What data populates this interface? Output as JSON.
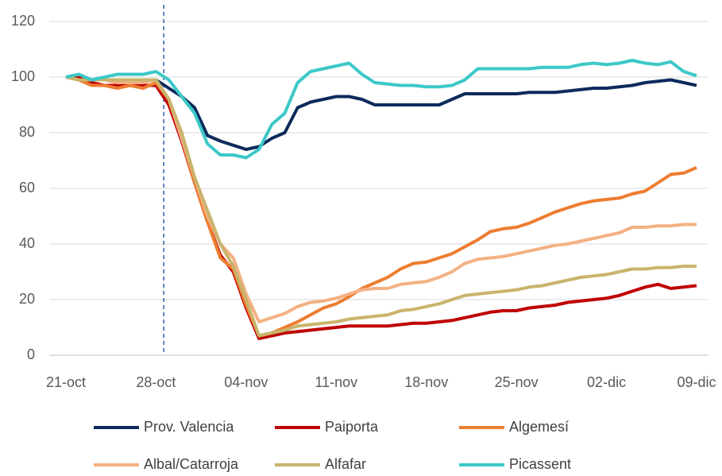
{
  "chart_data": {
    "type": "line",
    "categories": [
      "21-oct",
      null,
      null,
      null,
      null,
      null,
      null,
      "28-oct",
      null,
      null,
      null,
      null,
      null,
      null,
      "04-nov",
      null,
      null,
      null,
      null,
      null,
      null,
      "11-nov",
      null,
      null,
      null,
      null,
      null,
      null,
      "18-nov",
      null,
      null,
      null,
      null,
      null,
      null,
      "25-nov",
      null,
      null,
      null,
      null,
      null,
      null,
      "02-dic",
      null,
      null,
      null,
      null,
      null,
      null,
      "09-dic"
    ],
    "series": [
      {
        "name": "Prov. Valencia",
        "color": "#0d2a5c",
        "values": [
          100,
          100,
          99,
          99,
          99,
          99,
          99,
          99,
          96,
          93,
          89,
          79,
          77,
          75.5,
          74,
          75,
          78,
          80,
          89,
          91,
          92,
          93,
          93,
          92,
          90,
          90,
          90,
          90,
          90,
          90,
          92,
          94,
          94,
          94,
          94,
          94,
          94.5,
          94.5,
          94.5,
          95,
          95.5,
          96,
          96,
          96.5,
          97,
          98,
          98.5,
          99,
          98,
          97
        ]
      },
      {
        "name": "Paiporta",
        "color": "#c00000",
        "values": [
          100,
          100,
          98,
          97,
          97,
          97,
          97,
          97,
          90,
          77,
          62,
          48,
          36,
          30,
          17,
          6,
          7,
          8,
          8.5,
          9,
          9.5,
          10,
          10.5,
          10.5,
          10.5,
          10.5,
          11,
          11.5,
          11.5,
          12,
          12.5,
          13.5,
          14.5,
          15.5,
          16,
          16,
          17,
          17.5,
          18,
          19,
          19.5,
          20,
          20.5,
          21.5,
          23,
          24.5,
          25.5,
          24,
          24.5,
          25
        ]
      },
      {
        "name": "Algemesí",
        "color": "#ed7d31",
        "values": [
          100,
          99,
          97,
          97,
          96,
          97,
          96,
          98,
          92,
          78,
          62,
          48,
          35,
          31,
          18,
          7,
          8,
          10,
          12,
          14.5,
          17,
          18.5,
          21,
          24,
          26,
          28,
          31,
          33,
          33.5,
          35,
          36.5,
          39,
          41.5,
          44.5,
          45.5,
          46,
          47.5,
          49.5,
          51.5,
          53,
          54.5,
          55.5,
          56,
          56.5,
          58,
          59,
          62,
          65,
          65.5,
          67.5
        ]
      },
      {
        "name": "Albal/Catarroja",
        "color": "#f4b183",
        "values": [
          100,
          99,
          99,
          99,
          98,
          98,
          98,
          99,
          92,
          78,
          64,
          50,
          40,
          35,
          22,
          12,
          13.5,
          15,
          17.5,
          19,
          19.5,
          20.5,
          22,
          23.5,
          24,
          24,
          25.5,
          26,
          26.5,
          28,
          30,
          33,
          34.5,
          35,
          35.5,
          36.5,
          37.5,
          38.5,
          39.5,
          40,
          41,
          42,
          43,
          44,
          46,
          46,
          46.5,
          46.5,
          47,
          47
        ]
      },
      {
        "name": "Alfafar",
        "color": "#c9b46c",
        "values": [
          100,
          99,
          99,
          99,
          99,
          99,
          99,
          99,
          92,
          80,
          64,
          52,
          40,
          32,
          20,
          7,
          8,
          9,
          10.5,
          11,
          11.5,
          12,
          13,
          13.5,
          14,
          14.5,
          16,
          16.5,
          17.5,
          18.5,
          20,
          21.5,
          22,
          22.5,
          23,
          23.5,
          24.5,
          25,
          26,
          27,
          28,
          28.5,
          29,
          30,
          31,
          31,
          31.5,
          31.5,
          32,
          32
        ]
      },
      {
        "name": "Picassent",
        "color": "#3cc8c8",
        "values": [
          100,
          101,
          99,
          100,
          101,
          101,
          101,
          102,
          99,
          93,
          87,
          76,
          72,
          72,
          71,
          74,
          83,
          87,
          98,
          102,
          103,
          104,
          105,
          101,
          98,
          97.5,
          97,
          97,
          96.5,
          96.5,
          97,
          99,
          103,
          103,
          103,
          103,
          103,
          103.5,
          103.5,
          103.5,
          104.5,
          105,
          104.5,
          105,
          106,
          105,
          104.5,
          105.5,
          102,
          100.5
        ]
      }
    ],
    "ylim": [
      0,
      120
    ],
    "yticks": [
      0,
      20,
      40,
      60,
      80,
      100,
      120
    ],
    "grid": true,
    "vline": 7.6,
    "legend": "bottom"
  }
}
